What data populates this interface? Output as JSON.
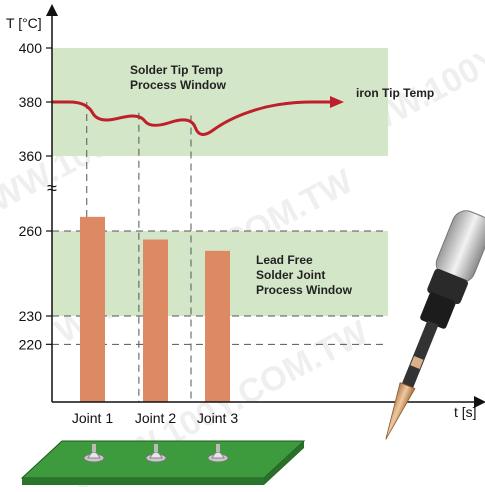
{
  "chart_data": {
    "type": "bar",
    "ylabel": "T [°C]",
    "xlabel": "t [s]",
    "upper_axis": {
      "ticks": [
        400,
        380,
        360
      ],
      "range": [
        355,
        402
      ]
    },
    "lower_axis": {
      "ticks": [
        260,
        230,
        220
      ],
      "range": [
        190,
        268
      ]
    },
    "categories": [
      "Joint 1",
      "Joint 2",
      "Joint 3"
    ],
    "values": [
      265,
      257,
      253
    ],
    "windows": [
      {
        "label_lines": [
          "Solder Tip Temp",
          "Process Window"
        ],
        "range": [
          360,
          400
        ],
        "axis": "upper"
      },
      {
        "label_lines": [
          "Lead Free",
          "Solder Joint",
          "Process Window"
        ],
        "range": [
          230,
          260
        ],
        "axis": "lower"
      }
    ],
    "tip_temperature": {
      "label": "iron Tip Temp",
      "points": [
        [
          0,
          380
        ],
        [
          6,
          380
        ],
        [
          8,
          372
        ],
        [
          15,
          376
        ],
        [
          17,
          370
        ],
        [
          24,
          375
        ],
        [
          25.5,
          366
        ],
        [
          30,
          373
        ],
        [
          36,
          378
        ],
        [
          42,
          380
        ],
        [
          48,
          380
        ]
      ]
    },
    "axis_break_symbol": "≈",
    "watermark": "WWW.100Y.COM.TW",
    "colors": {
      "window": "#d3e6c8",
      "bar": "#dd8a64",
      "curve": "#bf1f2a",
      "pcb": "#3d9a3d"
    }
  }
}
